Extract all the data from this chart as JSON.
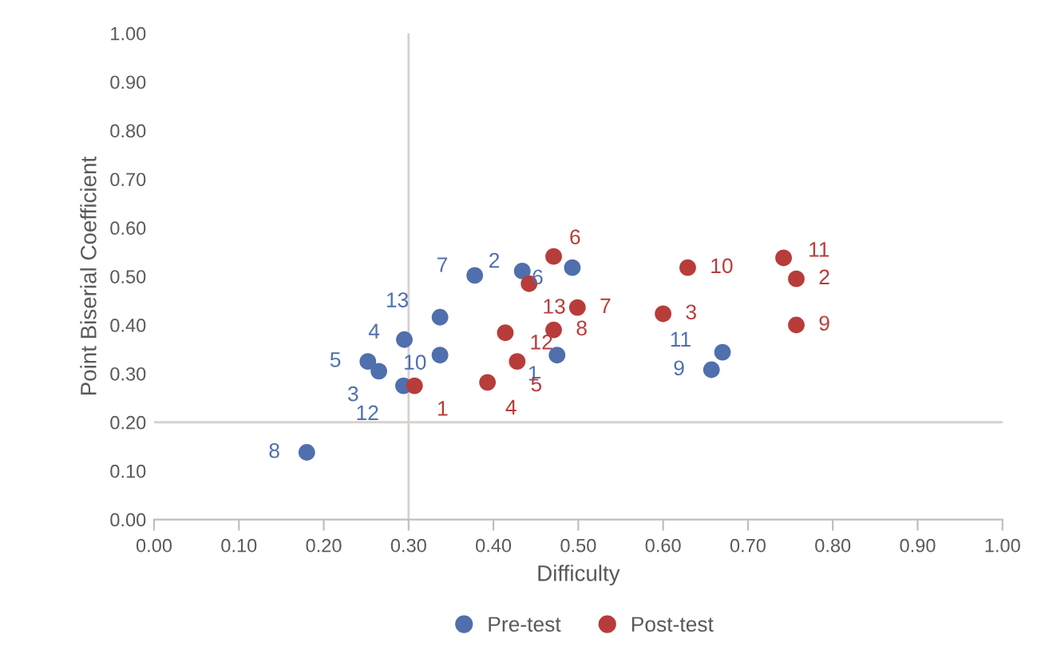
{
  "chart_data": {
    "type": "scatter",
    "xlabel": "Difficulty",
    "ylabel": "Point Biserial Coefficient",
    "xlim": [
      0,
      1
    ],
    "ylim": [
      0,
      1
    ],
    "xticks": [
      {
        "value": 0,
        "label": "0.00"
      },
      {
        "value": 0.1,
        "label": "0.10"
      },
      {
        "value": 0.2,
        "label": "0.20"
      },
      {
        "value": 0.3,
        "label": "0.30"
      },
      {
        "value": 0.4,
        "label": "0.40"
      },
      {
        "value": 0.5,
        "label": "0.50"
      },
      {
        "value": 0.6,
        "label": "0.60"
      },
      {
        "value": 0.7,
        "label": "0.70"
      },
      {
        "value": 0.8,
        "label": "0.80"
      },
      {
        "value": 0.9,
        "label": "0.90"
      },
      {
        "value": 1,
        "label": "1.00"
      }
    ],
    "yticks": [
      {
        "value": 0,
        "label": "0.00"
      },
      {
        "value": 0.1,
        "label": "0.10"
      },
      {
        "value": 0.2,
        "label": "0.20"
      },
      {
        "value": 0.3,
        "label": "0.30"
      },
      {
        "value": 0.4,
        "label": "0.40"
      },
      {
        "value": 0.5,
        "label": "0.50"
      },
      {
        "value": 0.6,
        "label": "0.60"
      },
      {
        "value": 0.7,
        "label": "0.70"
      },
      {
        "value": 0.8,
        "label": "0.80"
      },
      {
        "value": 0.9,
        "label": "0.90"
      },
      {
        "value": 1,
        "label": "1.00"
      }
    ],
    "grid": false,
    "legend": "bottom",
    "marker": "circle",
    "series": [
      {
        "name": "Pre-test",
        "color": "#4f6fad",
        "x": [
          0.475,
          0.434,
          0.265,
          0.295,
          0.252,
          0.493,
          0.378,
          0.18,
          0.657,
          0.337,
          0.67,
          0.294,
          0.337
        ],
        "values": [
          0.338,
          0.511,
          0.305,
          0.37,
          0.325,
          0.518,
          0.502,
          0.138,
          0.308,
          0.338,
          0.344,
          0.275,
          0.416
        ]
      },
      {
        "name": "Post-test",
        "color": "#b83c3a",
        "x": [
          0.307,
          0.757,
          0.6,
          0.393,
          0.428,
          0.471,
          0.499,
          0.471,
          0.757,
          0.629,
          0.742,
          0.414,
          0.442
        ],
        "values": [
          0.275,
          0.495,
          0.423,
          0.282,
          0.325,
          0.541,
          0.436,
          0.39,
          0.4,
          0.518,
          0.538,
          0.384,
          0.485
        ]
      }
    ],
    "ref_lines": [
      {
        "axis": "x",
        "value": 0.3,
        "color": "#d9d0cc"
      },
      {
        "axis": "y",
        "value": 0.2,
        "color": "#d9d0cc"
      }
    ],
    "annotations": [
      {
        "text": "1",
        "x": 0.475,
        "y": 0.338
      },
      {
        "text": "2",
        "x": 0.434,
        "y": 0.511
      },
      {
        "text": "3",
        "x": 0.265,
        "y": 0.305
      },
      {
        "text": "4",
        "x": 0.295,
        "y": 0.37
      },
      {
        "text": "5",
        "x": 0.252,
        "y": 0.325
      },
      {
        "text": "6",
        "x": 0.493,
        "y": 0.518
      },
      {
        "text": "7",
        "x": 0.378,
        "y": 0.502
      },
      {
        "text": "8",
        "x": 0.18,
        "y": 0.138
      },
      {
        "text": "9",
        "x": 0.657,
        "y": 0.308
      },
      {
        "text": "10",
        "x": 0.337,
        "y": 0.338
      },
      {
        "text": "11",
        "x": 0.67,
        "y": 0.344
      },
      {
        "text": "12",
        "x": 0.294,
        "y": 0.275
      },
      {
        "text": "13",
        "x": 0.337,
        "y": 0.416
      },
      {
        "text": "1",
        "x": 0.307,
        "y": 0.275
      },
      {
        "text": "2",
        "x": 0.757,
        "y": 0.495
      },
      {
        "text": "3",
        "x": 0.6,
        "y": 0.423
      },
      {
        "text": "4",
        "x": 0.393,
        "y": 0.282
      },
      {
        "text": "5",
        "x": 0.428,
        "y": 0.325
      },
      {
        "text": "6",
        "x": 0.471,
        "y": 0.541
      },
      {
        "text": "7",
        "x": 0.499,
        "y": 0.436
      },
      {
        "text": "8",
        "x": 0.471,
        "y": 0.39
      },
      {
        "text": "9",
        "x": 0.757,
        "y": 0.4
      },
      {
        "text": "10",
        "x": 0.629,
        "y": 0.518
      },
      {
        "text": "11",
        "x": 0.742,
        "y": 0.538
      },
      {
        "text": "12",
        "x": 0.414,
        "y": 0.384
      },
      {
        "text": "13",
        "x": 0.442,
        "y": 0.485
      }
    ]
  }
}
